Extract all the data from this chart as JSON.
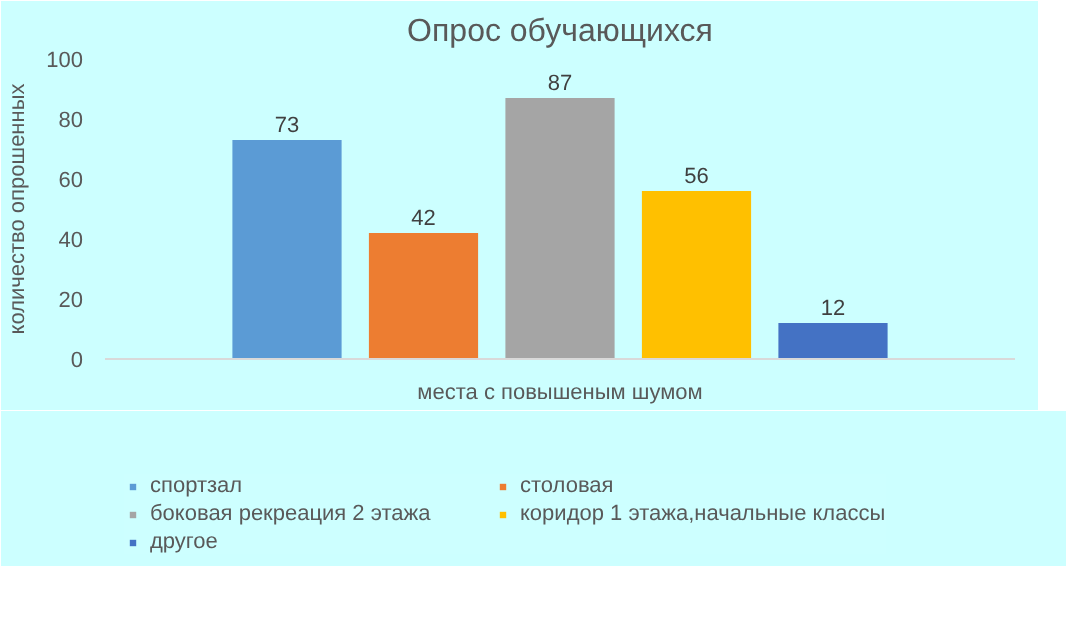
{
  "chart_data": {
    "type": "bar",
    "title": "Опрос обучающихся",
    "ylabel": "количество опрошенных",
    "categories": [
      "места с повышеным шумом"
    ],
    "series": [
      {
        "name": "спортзал",
        "color": "#5b9bd5",
        "values": [
          73
        ]
      },
      {
        "name": "столовая",
        "color": "#ed7d31",
        "values": [
          42
        ]
      },
      {
        "name": "боковая рекреация 2 этажа",
        "color": "#a5a5a5",
        "values": [
          87
        ]
      },
      {
        "name": "коридор 1 этажа,начальные классы",
        "color": "#ffc000",
        "values": [
          56
        ]
      },
      {
        "name": "другое",
        "color": "#4472c4",
        "values": [
          12
        ]
      }
    ],
    "ylim": [
      0,
      100
    ],
    "yticks": [
      0,
      20,
      40,
      60,
      80,
      100
    ],
    "grid": false,
    "legend": "bottom",
    "data_labels": true
  }
}
